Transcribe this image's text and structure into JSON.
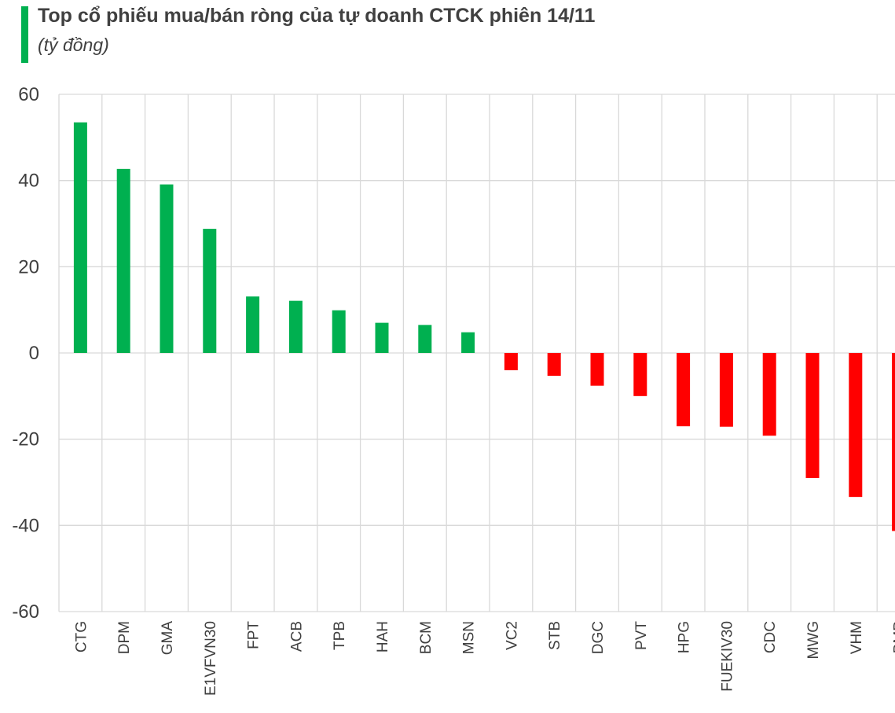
{
  "header": {
    "title": "Top cổ phiếu mua/bán ròng của tự doanh CTCK phiên 14/11",
    "subtitle": "(tỷ đồng)"
  },
  "colors": {
    "positive": "#00b050",
    "negative": "#ff0000",
    "grid": "#d9d9d9",
    "accent": "#00b050"
  },
  "chart_data": {
    "type": "bar",
    "title": "Top cổ phiếu mua/bán ròng của tự doanh CTCK phiên 14/11",
    "subtitle": "(tỷ đồng)",
    "categories": [
      "CTG",
      "DPM",
      "GMA",
      "E1VFVN30",
      "FPT",
      "ACB",
      "TPB",
      "HAH",
      "BCM",
      "MSN",
      "VC2",
      "STB",
      "DGC",
      "PVT",
      "HPG",
      "FUEKIV30",
      "CDC",
      "MWG",
      "VHM",
      "BMP"
    ],
    "values": [
      53.5,
      42.7,
      39.1,
      28.8,
      13.1,
      12.1,
      9.9,
      7.0,
      6.5,
      4.8,
      -4.0,
      -5.3,
      -7.6,
      -10.0,
      -17.0,
      -17.1,
      -19.2,
      -29.0,
      -33.4,
      -41.3
    ],
    "ylim": [
      -60,
      60
    ],
    "yticks": [
      60,
      40,
      20,
      0,
      -20,
      -40,
      -60
    ],
    "grid": true,
    "legend": "none"
  }
}
